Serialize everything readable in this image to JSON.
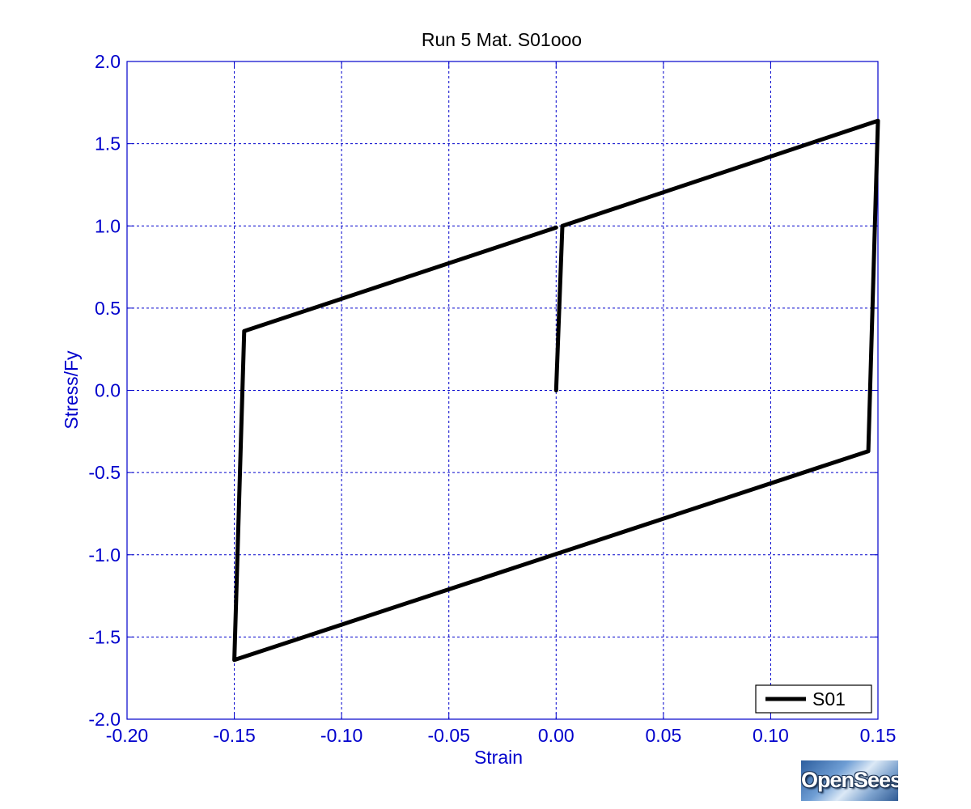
{
  "colors": {
    "axis": "#0000cc",
    "grid": "#0000cc",
    "series": "#000000",
    "title": "#000000",
    "background": "#ffffff"
  },
  "chart_data": {
    "type": "line",
    "title": "Run 5    Mat. S01ooo",
    "xlabel": "Strain",
    "ylabel": "Stress/Fy",
    "xlim": [
      -0.2,
      0.15
    ],
    "ylim": [
      -2.0,
      2.0
    ],
    "xticks": [
      -0.2,
      -0.15,
      -0.1,
      -0.05,
      0.0,
      0.05,
      0.1,
      0.15
    ],
    "xtick_labels": [
      "-0.20",
      "-0.15",
      "-0.10",
      "-0.05",
      "0.00",
      "0.05",
      "0.10",
      "0.15"
    ],
    "yticks": [
      -2.0,
      -1.5,
      -1.0,
      -0.5,
      0.0,
      0.5,
      1.0,
      1.5,
      2.0
    ],
    "ytick_labels": [
      "-2.0",
      "-1.5",
      "-1.0",
      "-0.5",
      "0.0",
      "0.5",
      "1.0",
      "1.5",
      "2.0"
    ],
    "grid": true,
    "legend_position": "bottom-right",
    "series": [
      {
        "name": "S01",
        "x": [
          0.0,
          0.0029,
          0.15,
          0.1455,
          -0.15,
          -0.1454,
          0.0
        ],
        "y": [
          0.0,
          1.0,
          1.64,
          -0.37,
          -1.64,
          0.36,
          0.99
        ]
      }
    ]
  },
  "logo": {
    "text": "OpenSees"
  }
}
